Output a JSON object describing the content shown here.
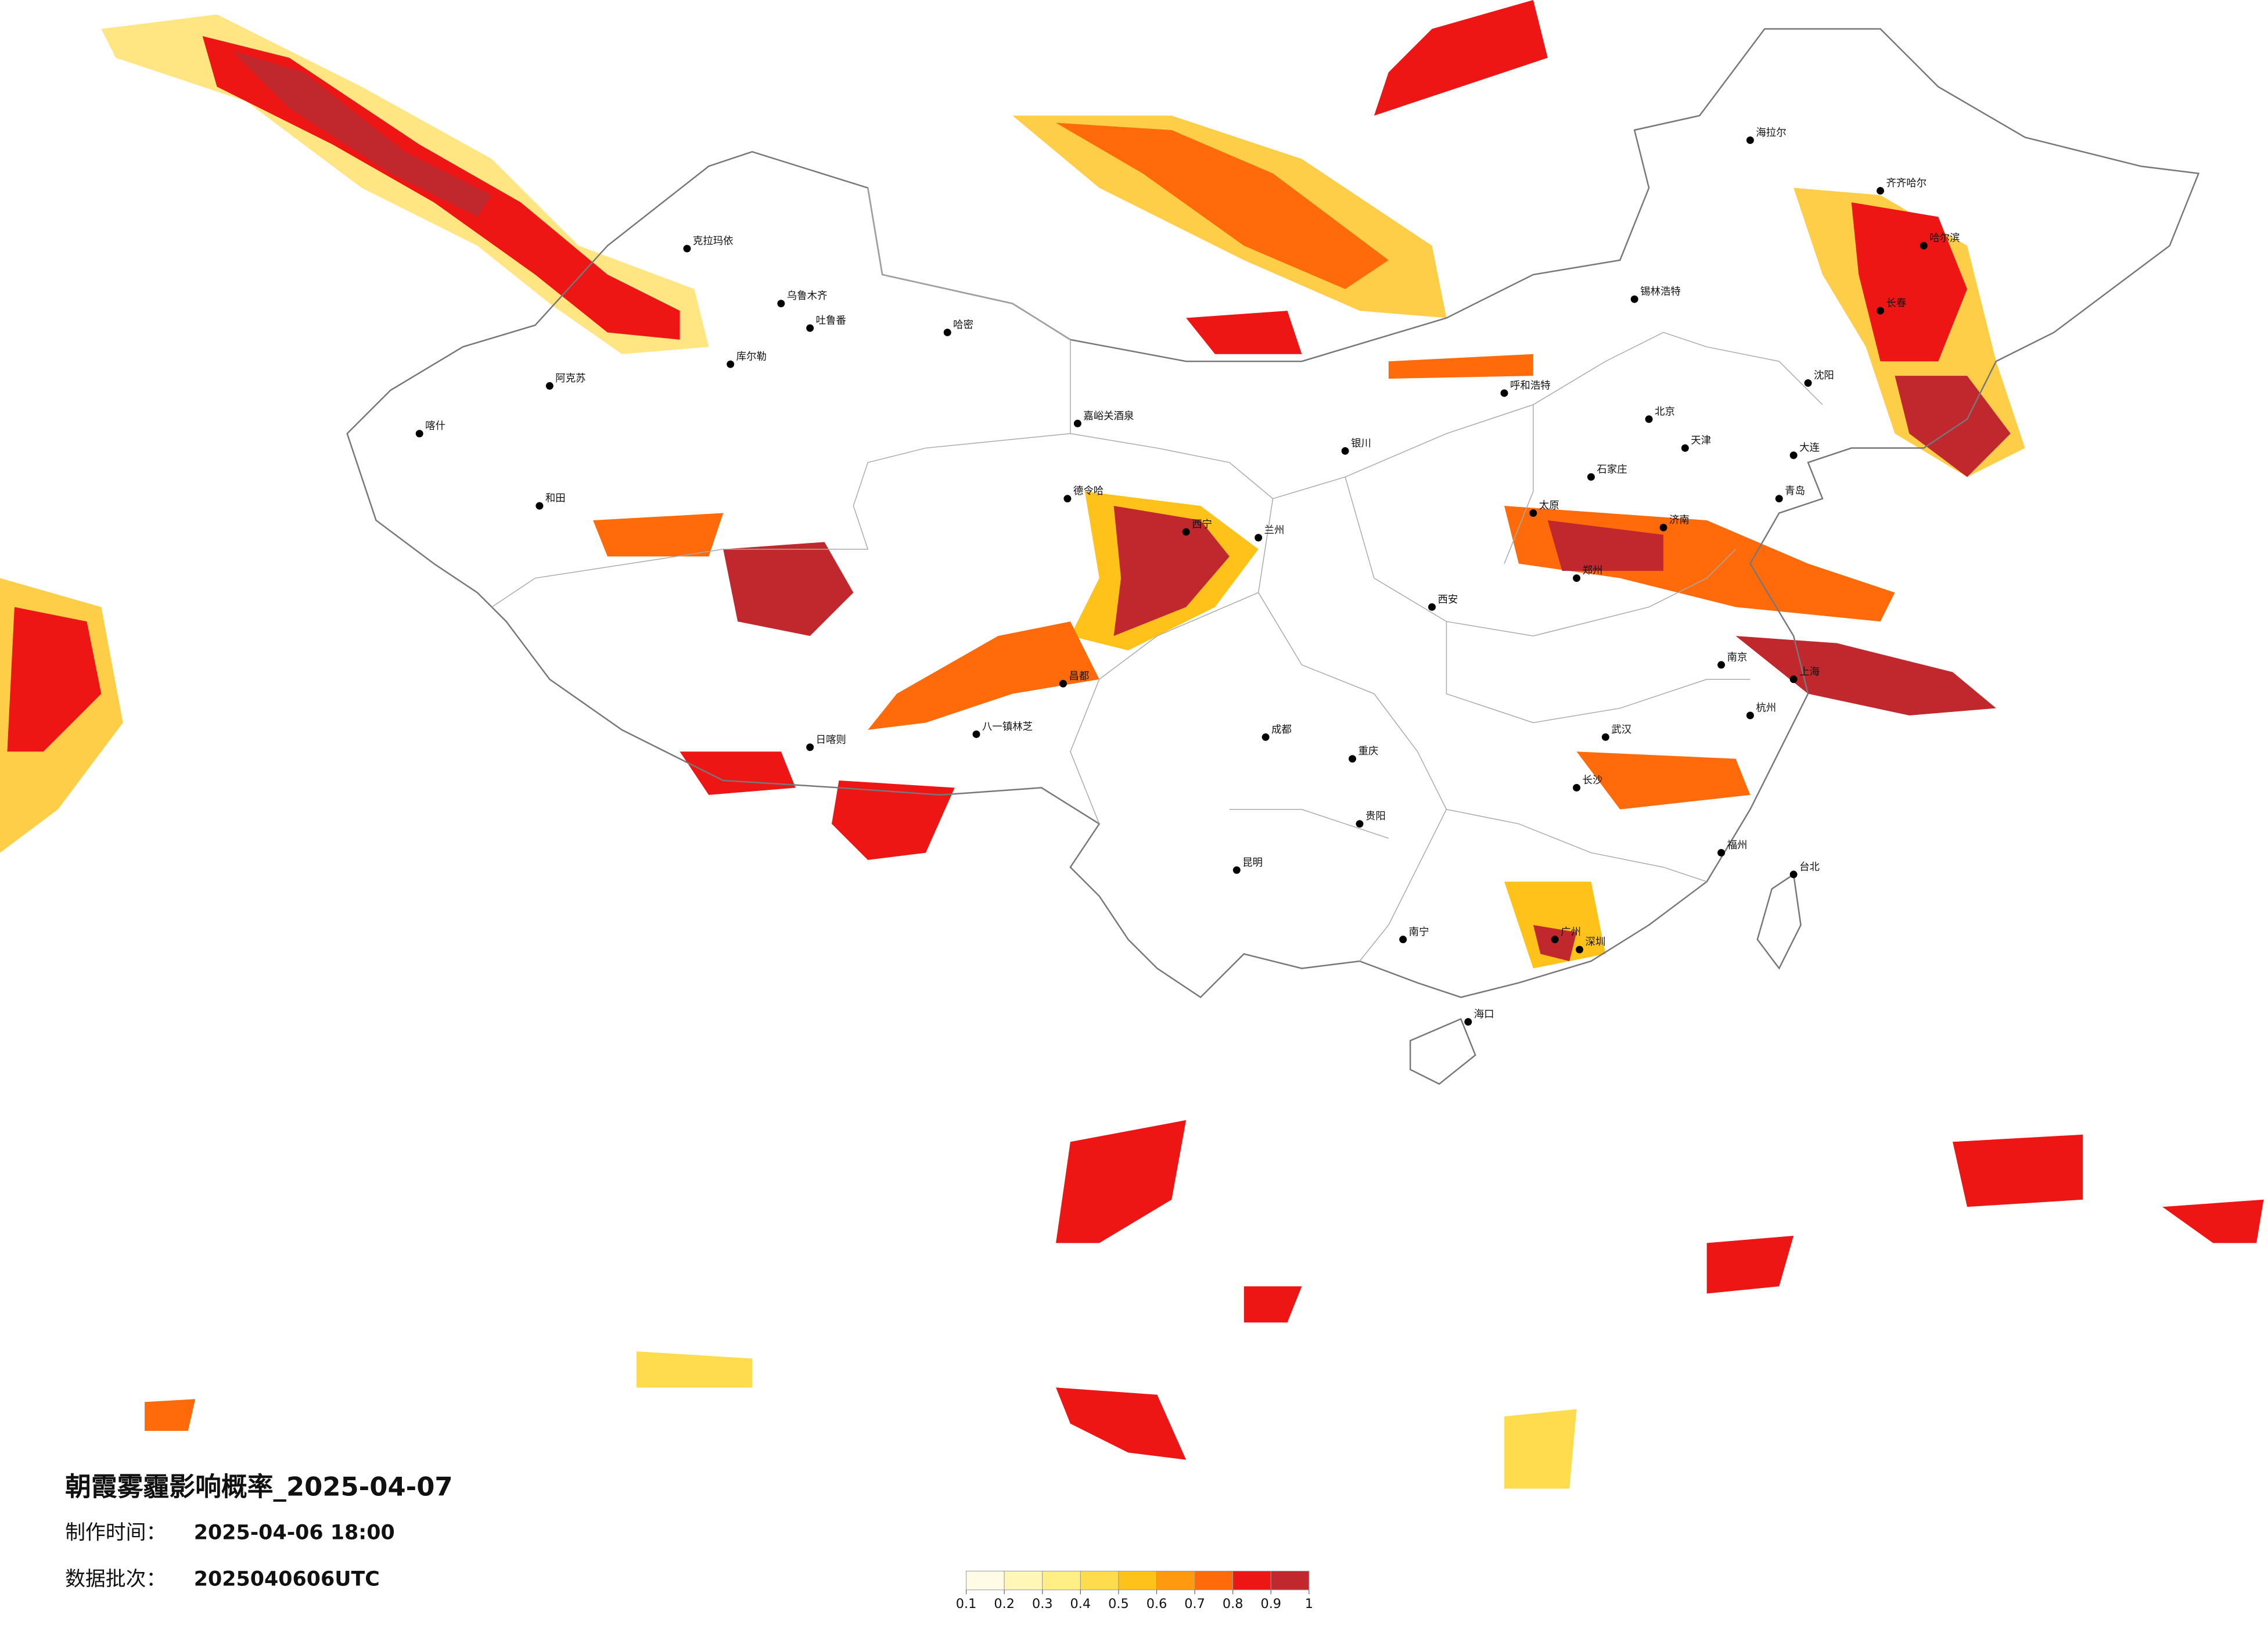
{
  "title": "朝霞雾霾影响概率_2025-04-07",
  "made_time": {
    "label": "制作时间：",
    "value": "2025-04-06 18:00"
  },
  "batch": {
    "label": "数据批次：",
    "value": "2025040606UTC"
  },
  "legend": {
    "ticks": [
      0.1,
      0.2,
      0.3,
      0.4,
      0.5,
      0.6,
      0.7,
      0.8,
      0.9,
      1
    ],
    "colors": [
      "#fffbe6",
      "#fff6b8",
      "#ffef85",
      "#ffdc4d",
      "#ffc21a",
      "#ff9a10",
      "#ff6a0a",
      "#ee1515",
      "#c0282d"
    ]
  },
  "cities": [
    "克拉玛依",
    "乌鲁木齐",
    "吐鲁番",
    "哈密",
    "库尔勒",
    "阿克苏",
    "喀什",
    "和田",
    "嘉峪关酒泉",
    "德令哈",
    "西宁",
    "兰州",
    "银川",
    "八一镇林芝",
    "日喀则",
    "昌都",
    "成都",
    "重庆",
    "昆明",
    "贵阳",
    "南宁",
    "海口",
    "广州",
    "深圳",
    "福州",
    "台北",
    "上海",
    "南京",
    "杭州",
    "武汉",
    "长沙",
    "郑州",
    "西安",
    "太原",
    "石家庄",
    "北京",
    "天津",
    "济南",
    "呼和浩特",
    "锡林浩特",
    "沈阳",
    "长春",
    "哈尔滨",
    "齐齐哈尔",
    "海拉尔",
    "大连",
    "青岛"
  ]
}
